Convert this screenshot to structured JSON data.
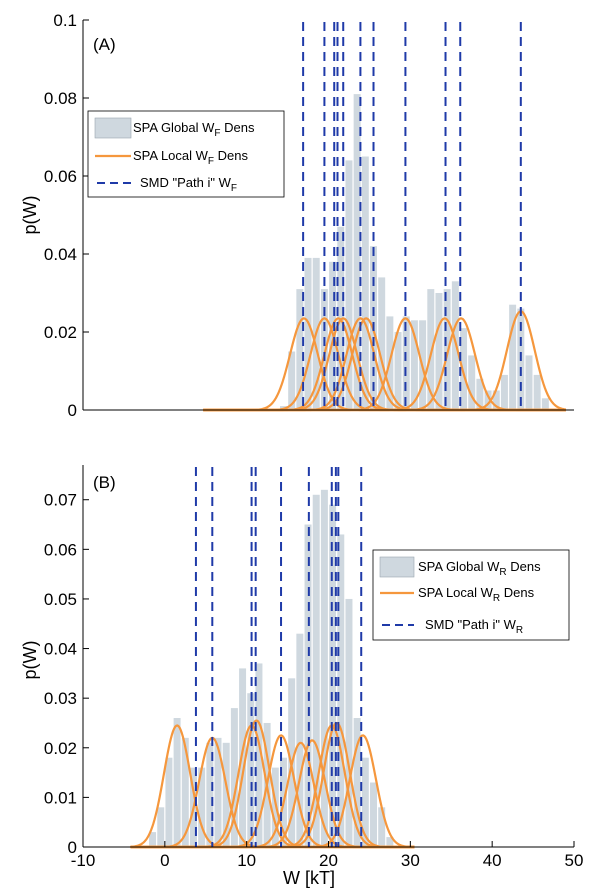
{
  "colors": {
    "global_bar": "#cfd8df",
    "local_curve": "#f5973d",
    "smd_line": "#1f3aa8",
    "axis": "#000000"
  },
  "chart_data": [
    {
      "type": "bar",
      "panel_label": "(A)",
      "xlim": [
        -10,
        50
      ],
      "ylim": [
        0,
        0.1
      ],
      "xticks": [],
      "yticks": [
        0,
        0.02,
        0.04,
        0.06,
        0.08,
        0.1
      ],
      "ytick_labels": [
        "0",
        "0.02",
        "0.04",
        "0.06",
        "0.08",
        "0.1"
      ],
      "ylabel": "p(W)",
      "xlabel": "",
      "legend": {
        "placement": "upper-left",
        "entries": [
          {
            "kind": "patch",
            "pre": "SPA Global W",
            "sub": "F",
            "post": " Dens"
          },
          {
            "kind": "line",
            "pre": "SPA Local W",
            "sub": "F",
            "post": " Dens"
          },
          {
            "kind": "dashed",
            "pre": "SMD \"Path i\" W",
            "sub": "F",
            "post": ""
          }
        ]
      },
      "bin_width": 1,
      "bins": [
        {
          "x": 14.5,
          "y": 0.001
        },
        {
          "x": 15.5,
          "y": 0.015
        },
        {
          "x": 16.5,
          "y": 0.031
        },
        {
          "x": 17.5,
          "y": 0.039
        },
        {
          "x": 18.5,
          "y": 0.039
        },
        {
          "x": 19.5,
          "y": 0.031
        },
        {
          "x": 20.5,
          "y": 0.038
        },
        {
          "x": 21.5,
          "y": 0.047
        },
        {
          "x": 22.5,
          "y": 0.064
        },
        {
          "x": 23.5,
          "y": 0.081
        },
        {
          "x": 24.5,
          "y": 0.065
        },
        {
          "x": 25.5,
          "y": 0.042
        },
        {
          "x": 26.5,
          "y": 0.034
        },
        {
          "x": 27.5,
          "y": 0.024
        },
        {
          "x": 28.5,
          "y": 0.02
        },
        {
          "x": 29.5,
          "y": 0.024
        },
        {
          "x": 30.5,
          "y": 0.023
        },
        {
          "x": 31.5,
          "y": 0.023
        },
        {
          "x": 32.5,
          "y": 0.031
        },
        {
          "x": 33.5,
          "y": 0.03
        },
        {
          "x": 34.5,
          "y": 0.031
        },
        {
          "x": 35.5,
          "y": 0.033
        },
        {
          "x": 36.5,
          "y": 0.021
        },
        {
          "x": 37.5,
          "y": 0.014
        },
        {
          "x": 38.5,
          "y": 0.008
        },
        {
          "x": 39.5,
          "y": 0.005
        },
        {
          "x": 40.5,
          "y": 0.005
        },
        {
          "x": 41.5,
          "y": 0.009
        },
        {
          "x": 42.5,
          "y": 0.027
        },
        {
          "x": 43.5,
          "y": 0.026
        },
        {
          "x": 44.5,
          "y": 0.014
        },
        {
          "x": 45.5,
          "y": 0.009
        },
        {
          "x": 46.5,
          "y": 0.003
        }
      ],
      "local_curves": [
        {
          "mu": 17.0,
          "sigma": 1.7,
          "amp": 0.0235
        },
        {
          "mu": 19.5,
          "sigma": 1.7,
          "amp": 0.0235
        },
        {
          "mu": 21.2,
          "sigma": 1.7,
          "amp": 0.0235
        },
        {
          "mu": 21.8,
          "sigma": 1.7,
          "amp": 0.0235
        },
        {
          "mu": 23.9,
          "sigma": 1.7,
          "amp": 0.0235
        },
        {
          "mu": 24.6,
          "sigma": 1.7,
          "amp": 0.0235
        },
        {
          "mu": 29.4,
          "sigma": 1.7,
          "amp": 0.0235
        },
        {
          "mu": 34.2,
          "sigma": 1.7,
          "amp": 0.0235
        },
        {
          "mu": 36.2,
          "sigma": 1.7,
          "amp": 0.0235
        },
        {
          "mu": 43.5,
          "sigma": 1.7,
          "amp": 0.0253
        }
      ],
      "smd_lines": [
        16.9,
        19.5,
        20.7,
        21.1,
        21.8,
        23.9,
        25.5,
        29.4,
        34.3,
        36.1,
        43.5
      ],
      "curve_range": [
        4.7,
        49.0
      ]
    },
    {
      "type": "bar",
      "panel_label": "(B)",
      "xlim": [
        -10,
        50
      ],
      "ylim": [
        0,
        0.077
      ],
      "xticks": [
        -10,
        0,
        10,
        20,
        30,
        40,
        50
      ],
      "xtick_labels": [
        "-10",
        "0",
        "10",
        "20",
        "30",
        "40",
        "50"
      ],
      "yticks": [
        0,
        0.01,
        0.02,
        0.03,
        0.04,
        0.05,
        0.06,
        0.07
      ],
      "ytick_labels": [
        "0",
        "0.01",
        "0.02",
        "0.03",
        "0.04",
        "0.05",
        "0.06",
        "0.07"
      ],
      "ylabel": "p(W)",
      "xlabel": "W [kT]",
      "legend": {
        "placement": "upper-right",
        "entries": [
          {
            "kind": "patch",
            "pre": "SPA Global W",
            "sub": "R",
            "post": " Dens"
          },
          {
            "kind": "line",
            "pre": "SPA Local W",
            "sub": "R",
            "post": " Dens"
          },
          {
            "kind": "dashed",
            "pre": "SMD \"Path i\" W",
            "sub": "R",
            "post": ""
          }
        ]
      },
      "bin_width": 1,
      "bins": [
        {
          "x": -1.5,
          "y": 0.003
        },
        {
          "x": -0.5,
          "y": 0.008
        },
        {
          "x": 0.5,
          "y": 0.018
        },
        {
          "x": 1.5,
          "y": 0.026
        },
        {
          "x": 2.5,
          "y": 0.022
        },
        {
          "x": 3.5,
          "y": 0.016
        },
        {
          "x": 4.5,
          "y": 0.016
        },
        {
          "x": 5.5,
          "y": 0.021
        },
        {
          "x": 6.5,
          "y": 0.022
        },
        {
          "x": 7.5,
          "y": 0.021
        },
        {
          "x": 8.5,
          "y": 0.028
        },
        {
          "x": 9.5,
          "y": 0.036
        },
        {
          "x": 10.5,
          "y": 0.031
        },
        {
          "x": 11.5,
          "y": 0.037
        },
        {
          "x": 12.5,
          "y": 0.025
        },
        {
          "x": 13.5,
          "y": 0.016
        },
        {
          "x": 14.5,
          "y": 0.018
        },
        {
          "x": 15.5,
          "y": 0.034
        },
        {
          "x": 16.5,
          "y": 0.043
        },
        {
          "x": 17.5,
          "y": 0.065
        },
        {
          "x": 18.5,
          "y": 0.071
        },
        {
          "x": 19.5,
          "y": 0.072
        },
        {
          "x": 20.5,
          "y": 0.069
        },
        {
          "x": 21.5,
          "y": 0.063
        },
        {
          "x": 22.5,
          "y": 0.05
        },
        {
          "x": 23.5,
          "y": 0.026
        },
        {
          "x": 24.5,
          "y": 0.018
        },
        {
          "x": 25.5,
          "y": 0.013
        },
        {
          "x": 26.5,
          "y": 0.008
        },
        {
          "x": 27.5,
          "y": 0.002
        }
      ],
      "local_curves": [
        {
          "mu": 1.5,
          "sigma": 1.6,
          "amp": 0.0245
        },
        {
          "mu": 5.8,
          "sigma": 1.6,
          "amp": 0.022
        },
        {
          "mu": 10.6,
          "sigma": 1.6,
          "amp": 0.0245
        },
        {
          "mu": 11.2,
          "sigma": 1.6,
          "amp": 0.0255
        },
        {
          "mu": 14.2,
          "sigma": 1.6,
          "amp": 0.0225
        },
        {
          "mu": 16.6,
          "sigma": 1.6,
          "amp": 0.021
        },
        {
          "mu": 18.0,
          "sigma": 1.6,
          "amp": 0.0215
        },
        {
          "mu": 20.4,
          "sigma": 1.6,
          "amp": 0.0245
        },
        {
          "mu": 21.0,
          "sigma": 1.6,
          "amp": 0.025
        },
        {
          "mu": 24.2,
          "sigma": 1.6,
          "amp": 0.0225
        }
      ],
      "smd_lines": [
        3.8,
        5.8,
        10.6,
        11.1,
        14.2,
        17.6,
        20.4,
        20.9,
        21.2,
        24.0
      ],
      "curve_range": [
        -4.2,
        30.5
      ]
    }
  ]
}
